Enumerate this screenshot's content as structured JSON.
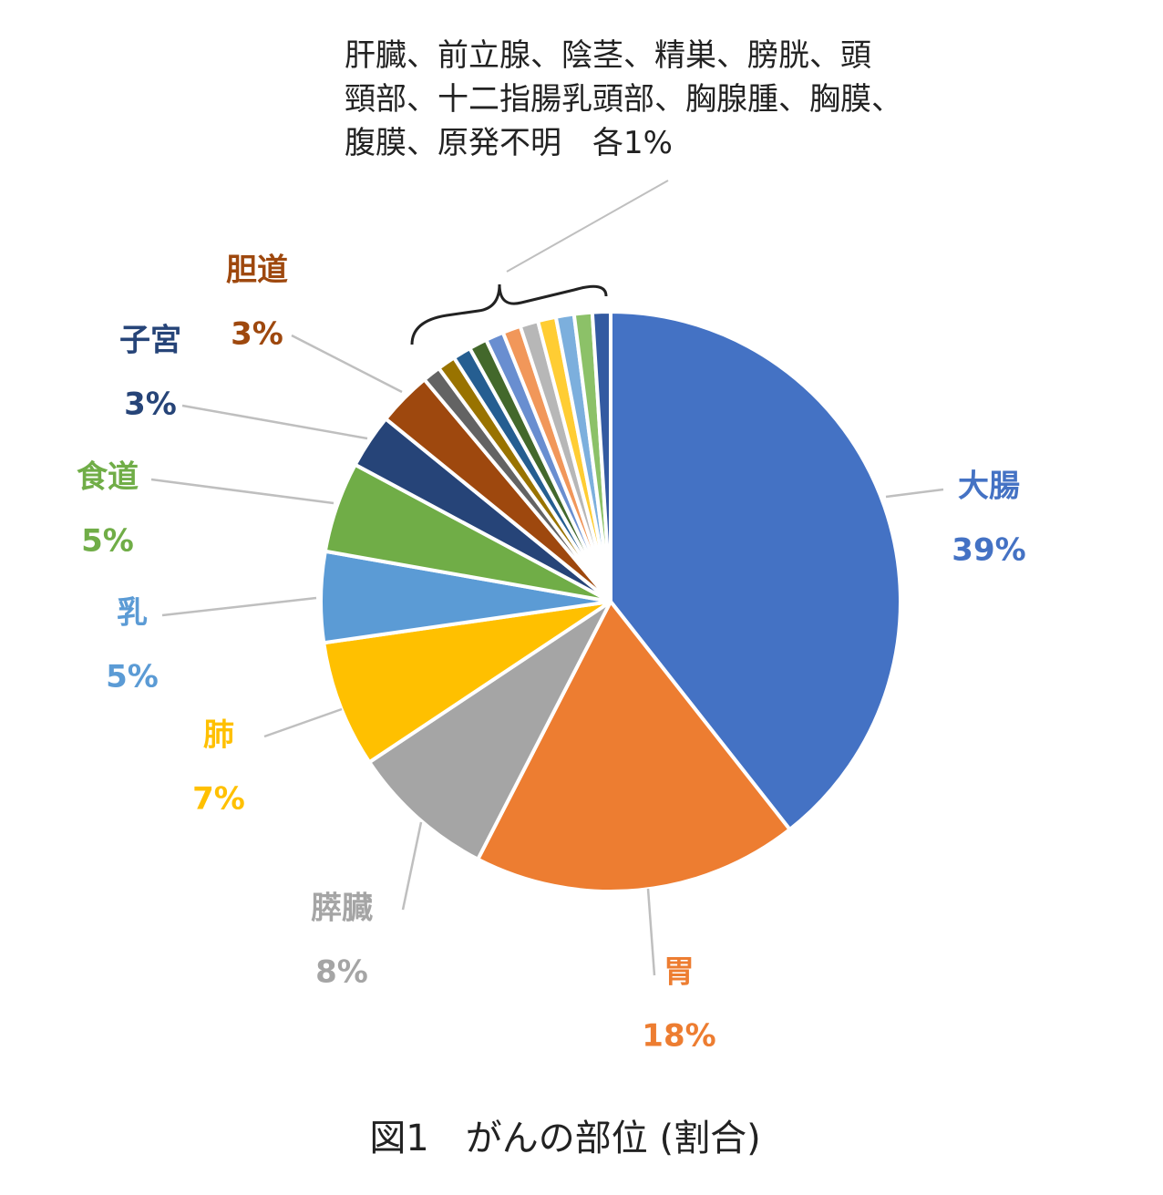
{
  "chart_data": {
    "type": "pie",
    "start_angle_deg": 0,
    "direction": "clockwise",
    "slices": [
      {
        "name": "大腸",
        "value": 39,
        "label": "39%",
        "color": "#4472C4"
      },
      {
        "name": "胃",
        "value": 18,
        "label": "18%",
        "color": "#ED7D31"
      },
      {
        "name": "膵臓",
        "value": 8,
        "label": "8%",
        "color": "#A5A5A5"
      },
      {
        "name": "肺",
        "value": 7,
        "label": "7%",
        "color": "#FFC000"
      },
      {
        "name": "乳",
        "value": 5,
        "label": "5%",
        "color": "#5B9BD5"
      },
      {
        "name": "食道",
        "value": 5,
        "label": "5%",
        "color": "#70AD47"
      },
      {
        "name": "子宮",
        "value": 3,
        "label": "3%",
        "color": "#264478"
      },
      {
        "name": "胆道",
        "value": 3,
        "label": "3%",
        "color": "#9E480E"
      },
      {
        "name": "肝臓",
        "value": 1,
        "color": "#636363"
      },
      {
        "name": "前立腺",
        "value": 1,
        "color": "#997300"
      },
      {
        "name": "陰茎",
        "value": 1,
        "color": "#255E91"
      },
      {
        "name": "精巣",
        "value": 1,
        "color": "#43682B"
      },
      {
        "name": "膀胱",
        "value": 1,
        "color": "#698ED0"
      },
      {
        "name": "頭頸部",
        "value": 1,
        "color": "#F1975A"
      },
      {
        "name": "十二指腸乳頭部",
        "value": 1,
        "color": "#B7B7B7"
      },
      {
        "name": "胸腺腫",
        "value": 1,
        "color": "#FFCD33"
      },
      {
        "name": "胸膜",
        "value": 1,
        "color": "#7CAFDD"
      },
      {
        "name": "腹膜",
        "value": 1,
        "color": "#8CC168"
      },
      {
        "name": "原発不明",
        "value": 1,
        "color": "#335AA1"
      }
    ],
    "group_annotation": {
      "lines": [
        "肝臓、前立腺、陰茎、精巣、膀胱、頭",
        "頸部、十二指腸乳頭部、胸腺腫、胸膜、",
        "腹膜、原発不明　各1%"
      ]
    }
  },
  "caption": "図1　がんの部位 (割合)"
}
